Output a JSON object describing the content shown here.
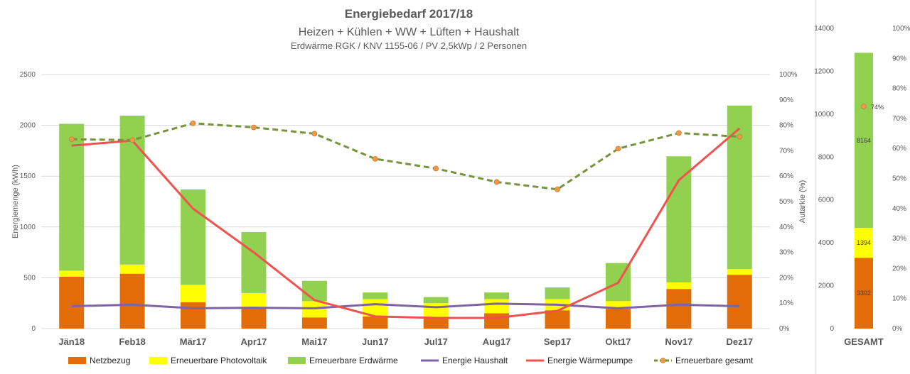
{
  "chart_data": [
    {
      "type": "bar",
      "title": "Energiebedarf 2017/18",
      "subtitle": "Heizen + Kühlen + WW + Lüften + Haushalt",
      "subtitle2": "Erdwärme RGK / KNV 1155-06 / PV 2,5kWp / 2 Personen",
      "ylabel": "Energiemenge (kWh)",
      "y2label": "Autarkie (%)",
      "ylim": [
        0,
        2500
      ],
      "yticks": [
        "0",
        "500",
        "1000",
        "1500",
        "2000",
        "2500"
      ],
      "y2lim": [
        0,
        100
      ],
      "y2ticks": [
        "0%",
        "10%",
        "20%",
        "30%",
        "40%",
        "50%",
        "60%",
        "70%",
        "80%",
        "90%",
        "100%"
      ],
      "categories": [
        "Jän18",
        "Feb18",
        "Mär17",
        "Apr17",
        "Mai17",
        "Jun17",
        "Jul17",
        "Aug17",
        "Sep17",
        "Okt17",
        "Nov17",
        "Dez17"
      ],
      "stacked_series": [
        {
          "name": "Netzbezug",
          "color": "#E36C09",
          "values": [
            510,
            540,
            260,
            200,
            110,
            120,
            110,
            150,
            180,
            195,
            390,
            530
          ]
        },
        {
          "name": "Erneuerbare Photovoltaik",
          "color": "#FFFF00",
          "values": [
            60,
            90,
            170,
            150,
            160,
            170,
            140,
            140,
            110,
            75,
            65,
            55
          ]
        },
        {
          "name": "Erneuerbare Erdwärme",
          "color": "#92D050",
          "values": [
            1445,
            1465,
            940,
            600,
            200,
            65,
            60,
            65,
            115,
            375,
            1240,
            1610
          ]
        }
      ],
      "line_series": [
        {
          "name": "Energie Haushalt",
          "color": "#8064A2",
          "axis": "left",
          "values": [
            220,
            235,
            200,
            205,
            200,
            240,
            210,
            245,
            235,
            200,
            235,
            220
          ]
        },
        {
          "name": "Energie Wärmepumpe",
          "color": "#F0524F",
          "axis": "left",
          "values": [
            1800,
            1850,
            1180,
            750,
            280,
            120,
            105,
            105,
            175,
            450,
            1460,
            1970
          ]
        },
        {
          "name": "Erneuerbare gesamt",
          "color": "#77933C",
          "axis": "right",
          "dashed": true,
          "marker_color": "#F79646",
          "values": [
            74.5,
            74.2,
            80.8,
            79.2,
            76.7,
            66.8,
            63.0,
            57.7,
            54.8,
            70.8,
            77.0,
            75.5
          ]
        }
      ],
      "legend": [
        "Netzbezug",
        "Erneuerbare Photovoltaik",
        "Erneuerbare Erdwärme",
        "Energie Haushalt",
        "Energie Wärmepumpe",
        "Erneuerbare gesamt"
      ],
      "legend_position": "bottom",
      "grid": true
    },
    {
      "type": "bar",
      "categories": [
        "GESAMT"
      ],
      "ylim": [
        0,
        14000
      ],
      "yticks": [
        "0",
        "2000",
        "4000",
        "6000",
        "8000",
        "10000",
        "12000",
        "14000"
      ],
      "y2lim": [
        0,
        100
      ],
      "y2ticks": [
        "0%",
        "10%",
        "20%",
        "30%",
        "40%",
        "50%",
        "60%",
        "70%",
        "80%",
        "90%",
        "100%"
      ],
      "stacked_series": [
        {
          "name": "Netzbezug",
          "color": "#E36C09",
          "values": [
            3302
          ],
          "label": "3302"
        },
        {
          "name": "Erneuerbare Photovoltaik",
          "color": "#FFFF00",
          "values": [
            1394
          ],
          "label": "1394"
        },
        {
          "name": "Erneuerbare Erdwärme",
          "color": "#92D050",
          "values": [
            8164
          ],
          "label": "8164"
        }
      ],
      "point": {
        "name": "Erneuerbare gesamt",
        "value": 74,
        "label": "74%",
        "color": "#F79646"
      },
      "grid": false
    }
  ]
}
